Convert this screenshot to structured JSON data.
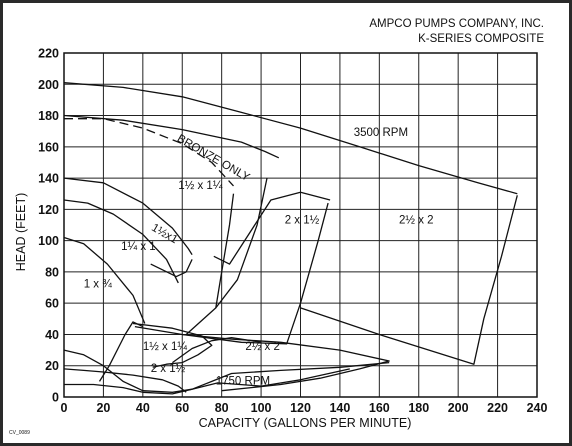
{
  "chart_data": {
    "type": "line",
    "title_lines": [
      "AMPCO PUMPS COMPANY, INC.",
      "K-SERIES COMPOSITE"
    ],
    "xlabel": "CAPACITY (GALLONS PER MINUTE)",
    "ylabel": "HEAD (FEET)",
    "xlim": [
      0,
      240
    ],
    "ylim": [
      0,
      220
    ],
    "xticks": [
      0,
      20,
      40,
      60,
      80,
      100,
      120,
      140,
      160,
      180,
      200,
      220,
      240
    ],
    "yticks": [
      0,
      20,
      40,
      60,
      80,
      100,
      120,
      140,
      160,
      180,
      200,
      220
    ],
    "grid": true,
    "corner_code": "CV_0089",
    "annotations": [
      {
        "text": "3500 RPM",
        "x": 147,
        "y": 167
      },
      {
        "text": "1750 RPM",
        "x": 77,
        "y": 8
      },
      {
        "text": "BRONZE ONLY",
        "x": 57,
        "y": 164,
        "rotate": 30
      },
      {
        "text": "1½ x 1¼",
        "x": 58,
        "y": 133
      },
      {
        "text": "1½x1",
        "x": 44,
        "y": 107,
        "rotate": 30
      },
      {
        "text": "1¼ x 1",
        "x": 29,
        "y": 94
      },
      {
        "text": "1 x ¾",
        "x": 10,
        "y": 70
      },
      {
        "text": "2 x 1½",
        "x": 112,
        "y": 111
      },
      {
        "text": "2½ x 2",
        "x": 170,
        "y": 111
      },
      {
        "text": "1½ x 1¼",
        "x": 40,
        "y": 30
      },
      {
        "text": "2½ x 2",
        "x": 92,
        "y": 30
      },
      {
        "text": "2 x 1½",
        "x": 44,
        "y": 16
      }
    ],
    "series": [
      {
        "style": "solid",
        "points": [
          [
            0,
            201
          ],
          [
            30,
            198
          ],
          [
            60,
            192
          ],
          [
            90,
            182
          ],
          [
            120,
            172
          ],
          [
            150,
            160
          ],
          [
            180,
            148
          ],
          [
            210,
            137
          ],
          [
            230,
            130
          ]
        ]
      },
      {
        "style": "solid",
        "points": [
          [
            0,
            180
          ],
          [
            30,
            177
          ],
          [
            60,
            171
          ],
          [
            90,
            163
          ],
          [
            102,
            157
          ],
          [
            109,
            153
          ]
        ]
      },
      {
        "style": "dashed",
        "points": [
          [
            0,
            178
          ],
          [
            20,
            178
          ],
          [
            40,
            172
          ],
          [
            60,
            162
          ],
          [
            75,
            150
          ],
          [
            86,
            135
          ]
        ]
      },
      {
        "style": "solid",
        "points": [
          [
            0,
            140
          ],
          [
            20,
            137
          ],
          [
            40,
            124
          ],
          [
            55,
            108
          ],
          [
            63,
            95
          ],
          [
            65,
            91
          ]
        ]
      },
      {
        "style": "solid",
        "points": [
          [
            0,
            126
          ],
          [
            12,
            124
          ],
          [
            25,
            117
          ],
          [
            40,
            104
          ],
          [
            52,
            88
          ],
          [
            58,
            73
          ]
        ]
      },
      {
        "style": "solid",
        "points": [
          [
            0,
            102
          ],
          [
            10,
            98
          ],
          [
            22,
            85
          ],
          [
            35,
            65
          ],
          [
            41,
            47
          ]
        ]
      },
      {
        "style": "solid",
        "points": [
          [
            76,
            90
          ],
          [
            84,
            85
          ],
          [
            105,
            126
          ],
          [
            120,
            131
          ],
          [
            135,
            126
          ]
        ]
      },
      {
        "style": "solid",
        "points": [
          [
            86,
            130
          ],
          [
            84,
            110
          ],
          [
            80,
            80
          ],
          [
            77,
            57
          ],
          [
            62,
            40
          ]
        ]
      },
      {
        "style": "solid",
        "points": [
          [
            103,
            140
          ],
          [
            98,
            110
          ],
          [
            88,
            75
          ],
          [
            77,
            57
          ]
        ]
      },
      {
        "style": "solid",
        "points": [
          [
            134,
            124
          ],
          [
            129,
            100
          ],
          [
            120,
            60
          ],
          [
            113,
            34
          ],
          [
            90,
            35
          ],
          [
            60,
            40
          ]
        ]
      },
      {
        "style": "solid",
        "points": [
          [
            230,
            129
          ],
          [
            222,
            90
          ],
          [
            213,
            50
          ],
          [
            208,
            21
          ],
          [
            160,
            40
          ],
          [
            120,
            57
          ]
        ]
      },
      {
        "style": "solid",
        "points": [
          [
            44,
            85
          ],
          [
            57,
            77
          ],
          [
            62,
            80
          ],
          [
            65,
            88
          ]
        ]
      },
      {
        "style": "solid",
        "points": [
          [
            18,
            10
          ],
          [
            23,
            20
          ],
          [
            31,
            40
          ],
          [
            35,
            48
          ],
          [
            40,
            45
          ]
        ]
      },
      {
        "style": "solid",
        "points": [
          [
            36,
            45
          ],
          [
            60,
            40
          ],
          [
            85,
            37
          ],
          [
            110,
            35
          ],
          [
            140,
            30
          ],
          [
            165,
            23
          ],
          [
            150,
            18
          ],
          [
            130,
            12
          ],
          [
            110,
            8
          ],
          [
            95,
            6
          ],
          [
            80,
            4
          ]
        ]
      },
      {
        "style": "solid",
        "points": [
          [
            0,
            30
          ],
          [
            10,
            27
          ],
          [
            20,
            20
          ],
          [
            30,
            10
          ],
          [
            40,
            4
          ],
          [
            55,
            3
          ],
          [
            65,
            5
          ],
          [
            75,
            10
          ],
          [
            85,
            15
          ],
          [
            110,
            17
          ],
          [
            140,
            19
          ],
          [
            165,
            22
          ]
        ]
      },
      {
        "style": "solid",
        "points": [
          [
            0,
            18
          ],
          [
            10,
            17
          ],
          [
            20,
            16
          ],
          [
            35,
            14
          ],
          [
            50,
            11
          ],
          [
            58,
            7
          ],
          [
            62,
            3
          ]
        ]
      },
      {
        "style": "solid",
        "points": [
          [
            0,
            8
          ],
          [
            15,
            8
          ],
          [
            30,
            6
          ],
          [
            40,
            3
          ],
          [
            55,
            2
          ],
          [
            65,
            5
          ],
          [
            78,
            9
          ],
          [
            100,
            7
          ],
          [
            120,
            11
          ],
          [
            145,
            18
          ]
        ]
      },
      {
        "style": "solid",
        "points": [
          [
            35,
            47
          ],
          [
            55,
            44
          ],
          [
            70,
            39
          ],
          [
            75,
            33
          ],
          [
            68,
            27
          ],
          [
            60,
            22
          ],
          [
            52,
            21
          ],
          [
            45,
            19
          ]
        ]
      },
      {
        "style": "solid",
        "points": [
          [
            55,
            22
          ],
          [
            65,
            31
          ],
          [
            75,
            36
          ],
          [
            85,
            38
          ],
          [
            95,
            36
          ],
          [
            100,
            35
          ]
        ]
      }
    ]
  }
}
